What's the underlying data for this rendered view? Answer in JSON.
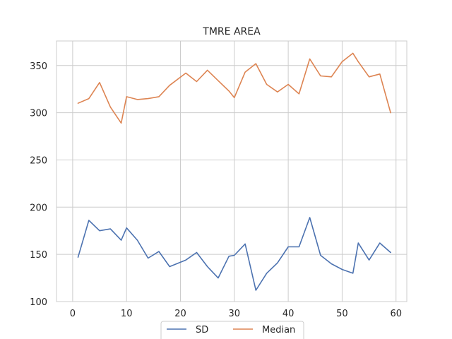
{
  "chart_data": {
    "type": "line",
    "title": "TMRE AREA",
    "xlabel": "",
    "ylabel": "",
    "xlim": [
      -3,
      62
    ],
    "ylim": [
      100,
      376
    ],
    "xticks": [
      0,
      10,
      20,
      30,
      40,
      50,
      60
    ],
    "yticks": [
      100,
      150,
      200,
      250,
      300,
      350
    ],
    "grid": true,
    "legend_placement": "bottom-center",
    "x": [
      1,
      3,
      5,
      7,
      9,
      10,
      12,
      14,
      16,
      18,
      21,
      23,
      25,
      27,
      29,
      30,
      32,
      34,
      36,
      38,
      40,
      42,
      44,
      46,
      48,
      50,
      52,
      53,
      55,
      57,
      59
    ],
    "series": [
      {
        "name": "SD",
        "color": "#4c72b0",
        "values": [
          147,
          186,
          175,
          177,
          165,
          178,
          165,
          146,
          153,
          137,
          144,
          152,
          137,
          125,
          148,
          149,
          161,
          112,
          130,
          141,
          158,
          158,
          189,
          149,
          140,
          134,
          130,
          162,
          144,
          162,
          152
        ]
      },
      {
        "name": "Median",
        "color": "#dd8452",
        "values": [
          310,
          315,
          332,
          306,
          289,
          317,
          314,
          315,
          317,
          329,
          342,
          333,
          345,
          334,
          323,
          316,
          343,
          352,
          330,
          322,
          330,
          320,
          357,
          339,
          338,
          354,
          363,
          354,
          338,
          341,
          300
        ]
      }
    ]
  }
}
